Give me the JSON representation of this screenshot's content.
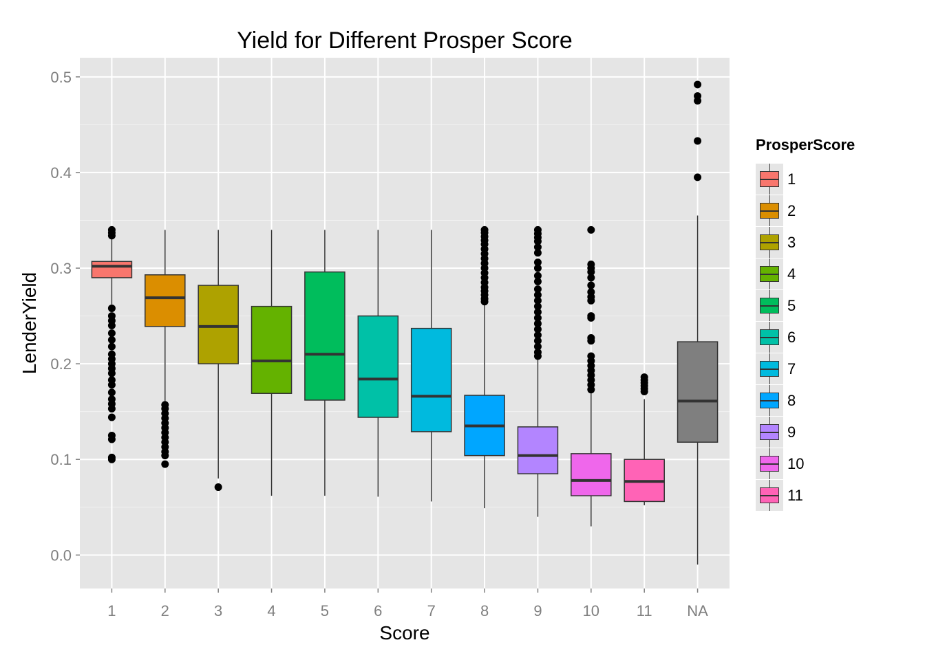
{
  "chart_data": {
    "type": "box",
    "title": "Yield for Different Prosper Score",
    "xlabel": "Score",
    "ylabel": "LenderYield",
    "ylim": [
      -0.035,
      0.52
    ],
    "yticks": [
      "0.0",
      "0.1",
      "0.2",
      "0.3",
      "0.4",
      "0.5"
    ],
    "ytick_values": [
      0.0,
      0.1,
      0.2,
      0.3,
      0.4,
      0.5
    ],
    "categories": [
      "1",
      "2",
      "3",
      "4",
      "5",
      "6",
      "7",
      "8",
      "9",
      "10",
      "11",
      "NA"
    ],
    "legend": {
      "title": "ProsperScore",
      "position": "right",
      "entries": [
        "1",
        "2",
        "3",
        "4",
        "5",
        "6",
        "7",
        "8",
        "9",
        "10",
        "11"
      ]
    },
    "grid": true,
    "series": [
      {
        "category": "1",
        "color": "#F8766D",
        "whisker_low": 0.262,
        "q1": 0.29,
        "median": 0.302,
        "q3": 0.307,
        "whisker_high": 0.331,
        "outliers": [
          0.34,
          0.337,
          0.334,
          0.258,
          0.25,
          0.245,
          0.24,
          0.232,
          0.225,
          0.218,
          0.21,
          0.205,
          0.2,
          0.195,
          0.19,
          0.183,
          0.178,
          0.17,
          0.163,
          0.158,
          0.153,
          0.144,
          0.125,
          0.121,
          0.102,
          0.1
        ]
      },
      {
        "category": "2",
        "color": "#DB8E00",
        "whisker_low": 0.16,
        "q1": 0.239,
        "median": 0.269,
        "q3": 0.293,
        "whisker_high": 0.34,
        "outliers": [
          0.157,
          0.153,
          0.148,
          0.143,
          0.138,
          0.133,
          0.128,
          0.123,
          0.118,
          0.113,
          0.108,
          0.104,
          0.095
        ]
      },
      {
        "category": "3",
        "color": "#AEA200",
        "whisker_low": 0.08,
        "q1": 0.2,
        "median": 0.239,
        "q3": 0.282,
        "whisker_high": 0.34,
        "outliers": [
          0.071
        ]
      },
      {
        "category": "4",
        "color": "#64B200",
        "whisker_low": 0.062,
        "q1": 0.169,
        "median": 0.203,
        "q3": 0.26,
        "whisker_high": 0.34,
        "outliers": []
      },
      {
        "category": "5",
        "color": "#00BD5C",
        "whisker_low": 0.062,
        "q1": 0.162,
        "median": 0.21,
        "q3": 0.296,
        "whisker_high": 0.34,
        "outliers": []
      },
      {
        "category": "6",
        "color": "#00C1A7",
        "whisker_low": 0.061,
        "q1": 0.144,
        "median": 0.184,
        "q3": 0.25,
        "whisker_high": 0.34,
        "outliers": []
      },
      {
        "category": "7",
        "color": "#00BADE",
        "whisker_low": 0.056,
        "q1": 0.129,
        "median": 0.166,
        "q3": 0.237,
        "whisker_high": 0.34,
        "outliers": []
      },
      {
        "category": "8",
        "color": "#00A6FF",
        "whisker_low": 0.049,
        "q1": 0.104,
        "median": 0.135,
        "q3": 0.167,
        "whisker_high": 0.262,
        "outliers": [
          0.34,
          0.337,
          0.333,
          0.329,
          0.325,
          0.32,
          0.315,
          0.31,
          0.305,
          0.3,
          0.295,
          0.29,
          0.285,
          0.28,
          0.276,
          0.272,
          0.268,
          0.265
        ]
      },
      {
        "category": "9",
        "color": "#B385FF",
        "whisker_low": 0.04,
        "q1": 0.085,
        "median": 0.104,
        "q3": 0.134,
        "whisker_high": 0.205,
        "outliers": [
          0.34,
          0.336,
          0.332,
          0.328,
          0.322,
          0.316,
          0.306,
          0.3,
          0.292,
          0.286,
          0.278,
          0.272,
          0.266,
          0.26,
          0.254,
          0.248,
          0.242,
          0.236,
          0.23,
          0.224,
          0.218,
          0.212,
          0.208
        ]
      },
      {
        "category": "10",
        "color": "#EF67EB",
        "whisker_low": 0.03,
        "q1": 0.062,
        "median": 0.078,
        "q3": 0.106,
        "whisker_high": 0.17,
        "outliers": [
          0.34,
          0.304,
          0.3,
          0.296,
          0.29,
          0.282,
          0.275,
          0.27,
          0.266,
          0.25,
          0.248,
          0.227,
          0.224,
          0.208,
          0.203,
          0.198,
          0.193,
          0.188,
          0.183,
          0.178,
          0.173
        ]
      },
      {
        "category": "11",
        "color": "#FF63B6",
        "whisker_low": 0.052,
        "q1": 0.056,
        "median": 0.077,
        "q3": 0.1,
        "whisker_high": 0.163,
        "outliers": [
          0.186,
          0.183,
          0.18,
          0.177,
          0.174,
          0.171
        ]
      },
      {
        "category": "NA",
        "color": "#7F7F7F",
        "whisker_low": -0.01,
        "q1": 0.118,
        "median": 0.161,
        "q3": 0.223,
        "whisker_high": 0.355,
        "outliers": [
          0.492,
          0.48,
          0.475,
          0.433,
          0.395
        ]
      }
    ]
  }
}
